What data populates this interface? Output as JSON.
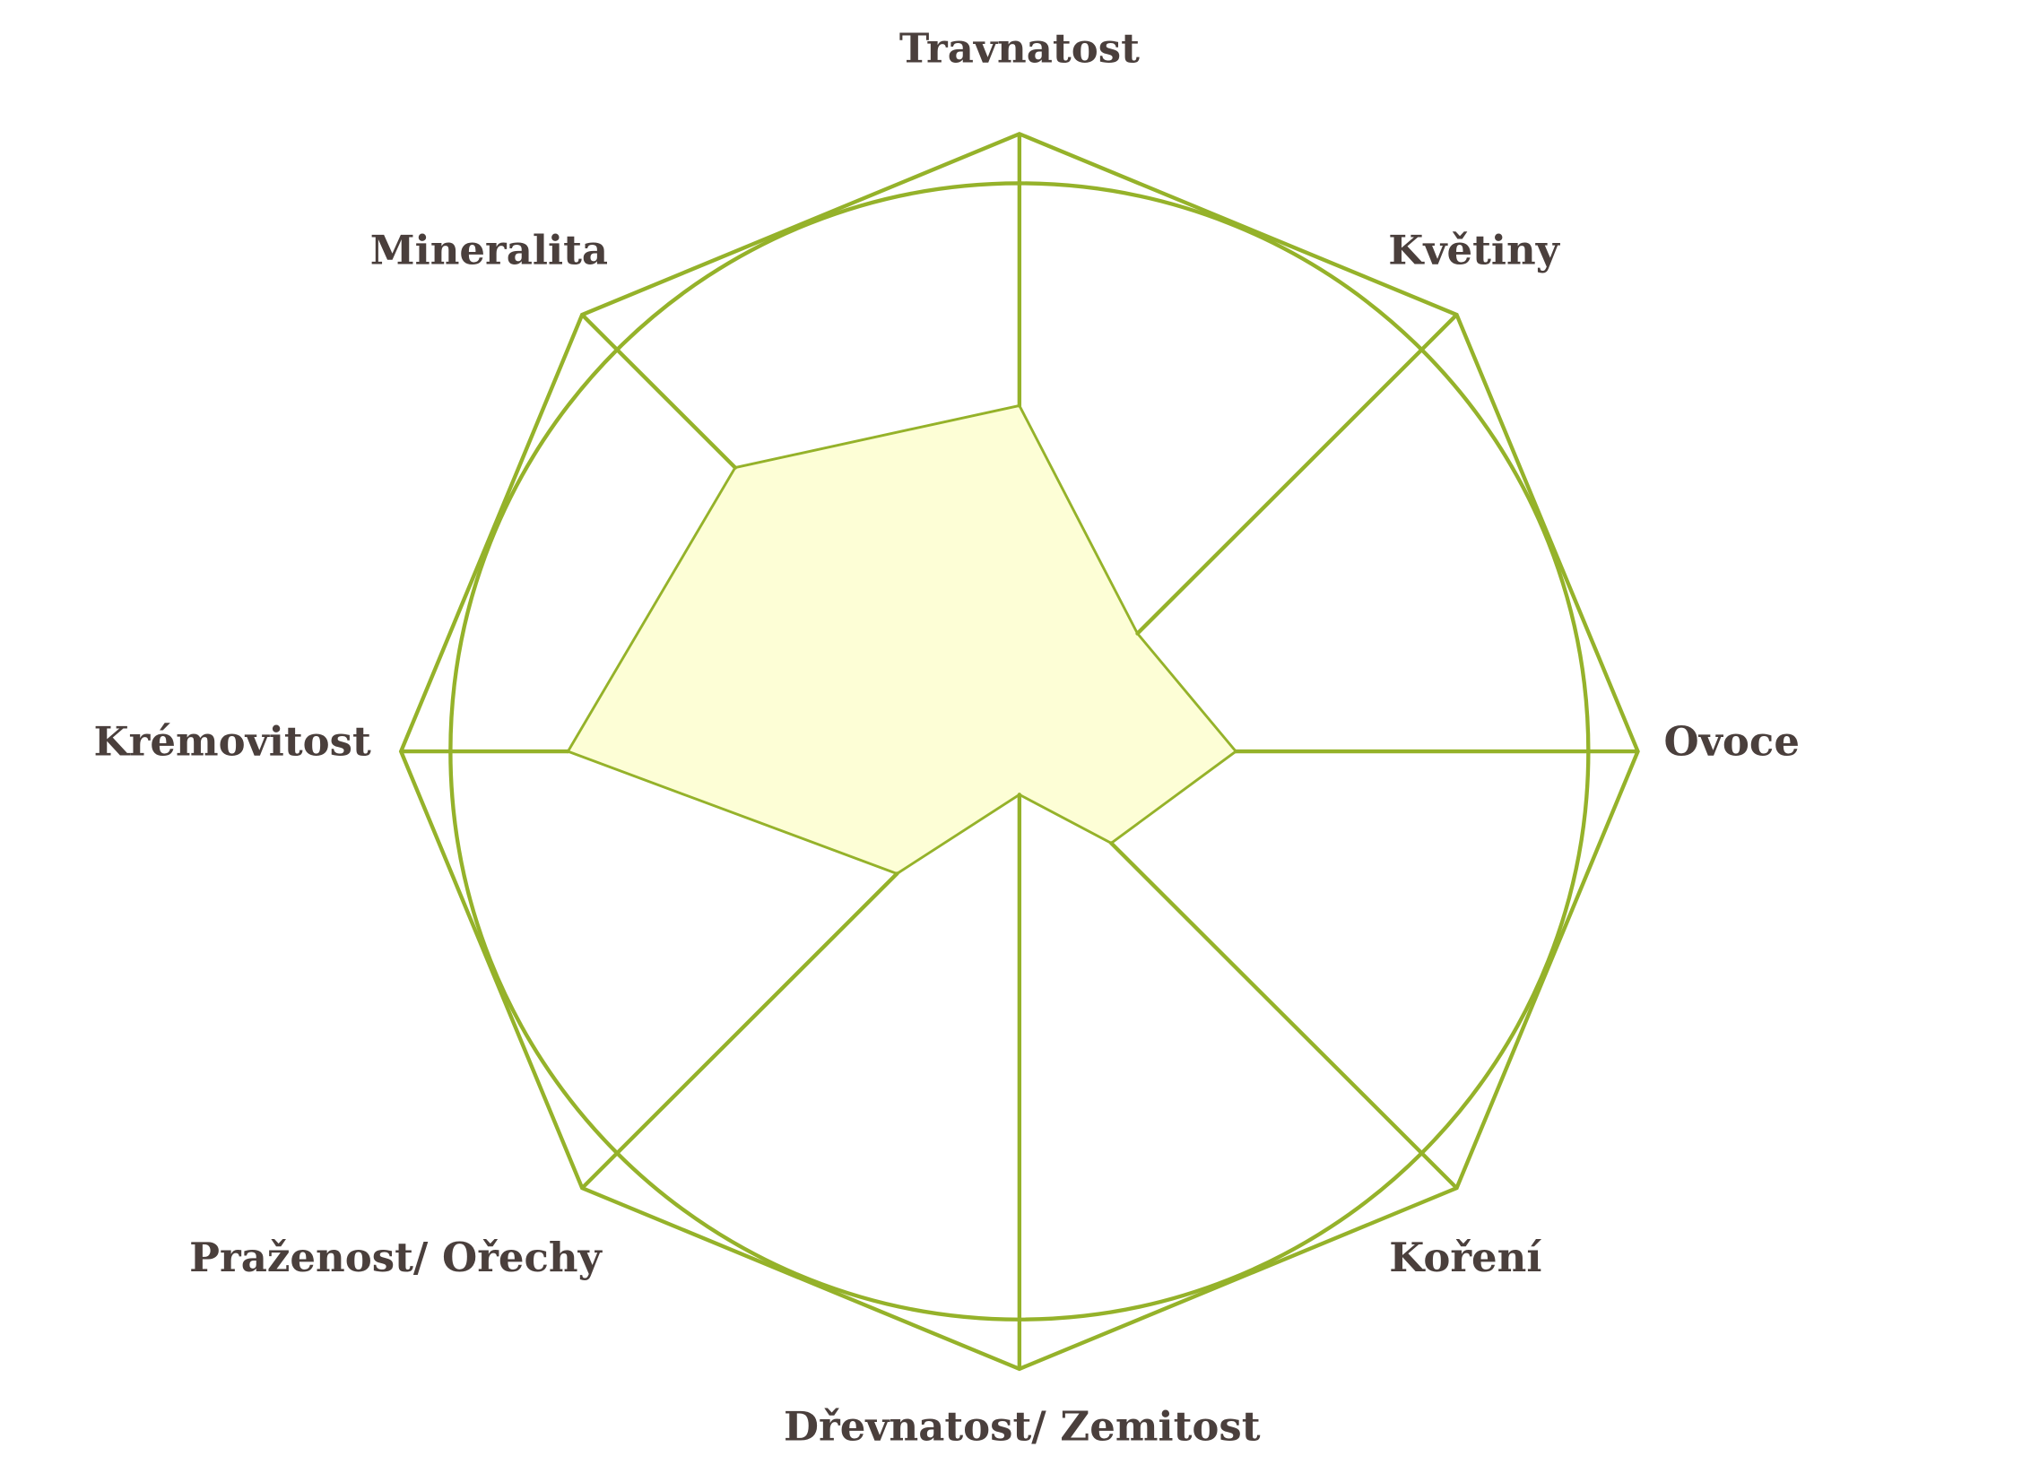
{
  "chart_data": {
    "type": "radar",
    "title": "",
    "axes": [
      "Travnatost",
      "Květiny",
      "Ovoce",
      "Koření",
      "Dřevnatost/ Zemitost",
      "Praženost/ Ořechy",
      "Krémovitost",
      "Mineralita"
    ],
    "range": [
      0,
      1
    ],
    "values": [
      0.56,
      0.27,
      0.35,
      0.21,
      0.07,
      0.28,
      0.73,
      0.65
    ],
    "gridlines": {
      "octagon_level": 1.0,
      "circle_level": 0.92
    },
    "colors": {
      "line": "#95b22a",
      "fill": "#fdfed6",
      "spoke_inner": "#e3ee9c",
      "label": "#4a3f3c"
    },
    "legend": "none"
  }
}
